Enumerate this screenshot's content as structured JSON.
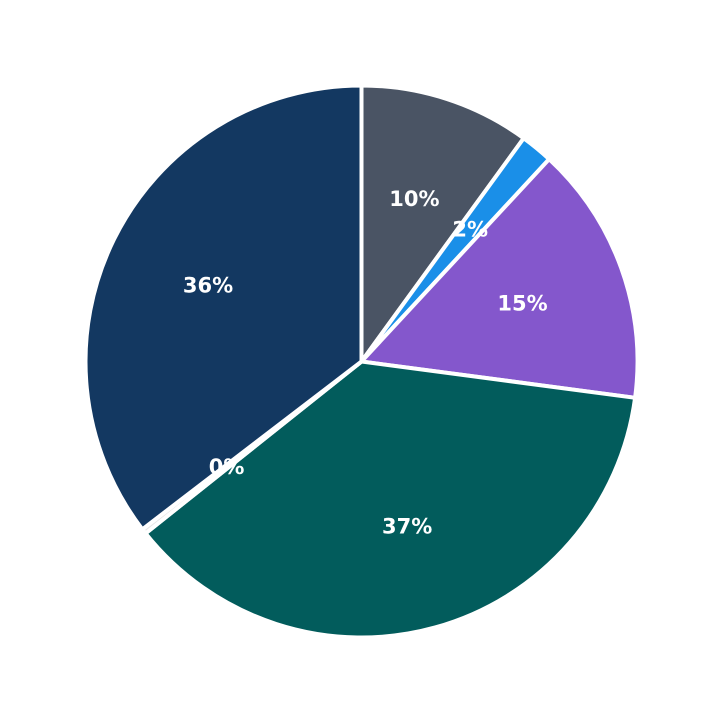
{
  "chart_data": {
    "type": "pie",
    "start": "12 o'clock",
    "direction": "clockwise",
    "legend": "none",
    "slices": [
      {
        "label": "10%",
        "value": 10.0,
        "color": "#4a5464"
      },
      {
        "label": "2%",
        "value": 1.9,
        "color": "#1a8fe8"
      },
      {
        "label": "15%",
        "value": 15.2,
        "color": "#8457cc"
      },
      {
        "label": "37%",
        "value": 37.2,
        "color": "#025c5c"
      },
      {
        "label": "0%",
        "value": 0.3,
        "color": "#e6e6e6"
      },
      {
        "label": "36%",
        "value": 35.4,
        "color": "#133861"
      }
    ]
  }
}
